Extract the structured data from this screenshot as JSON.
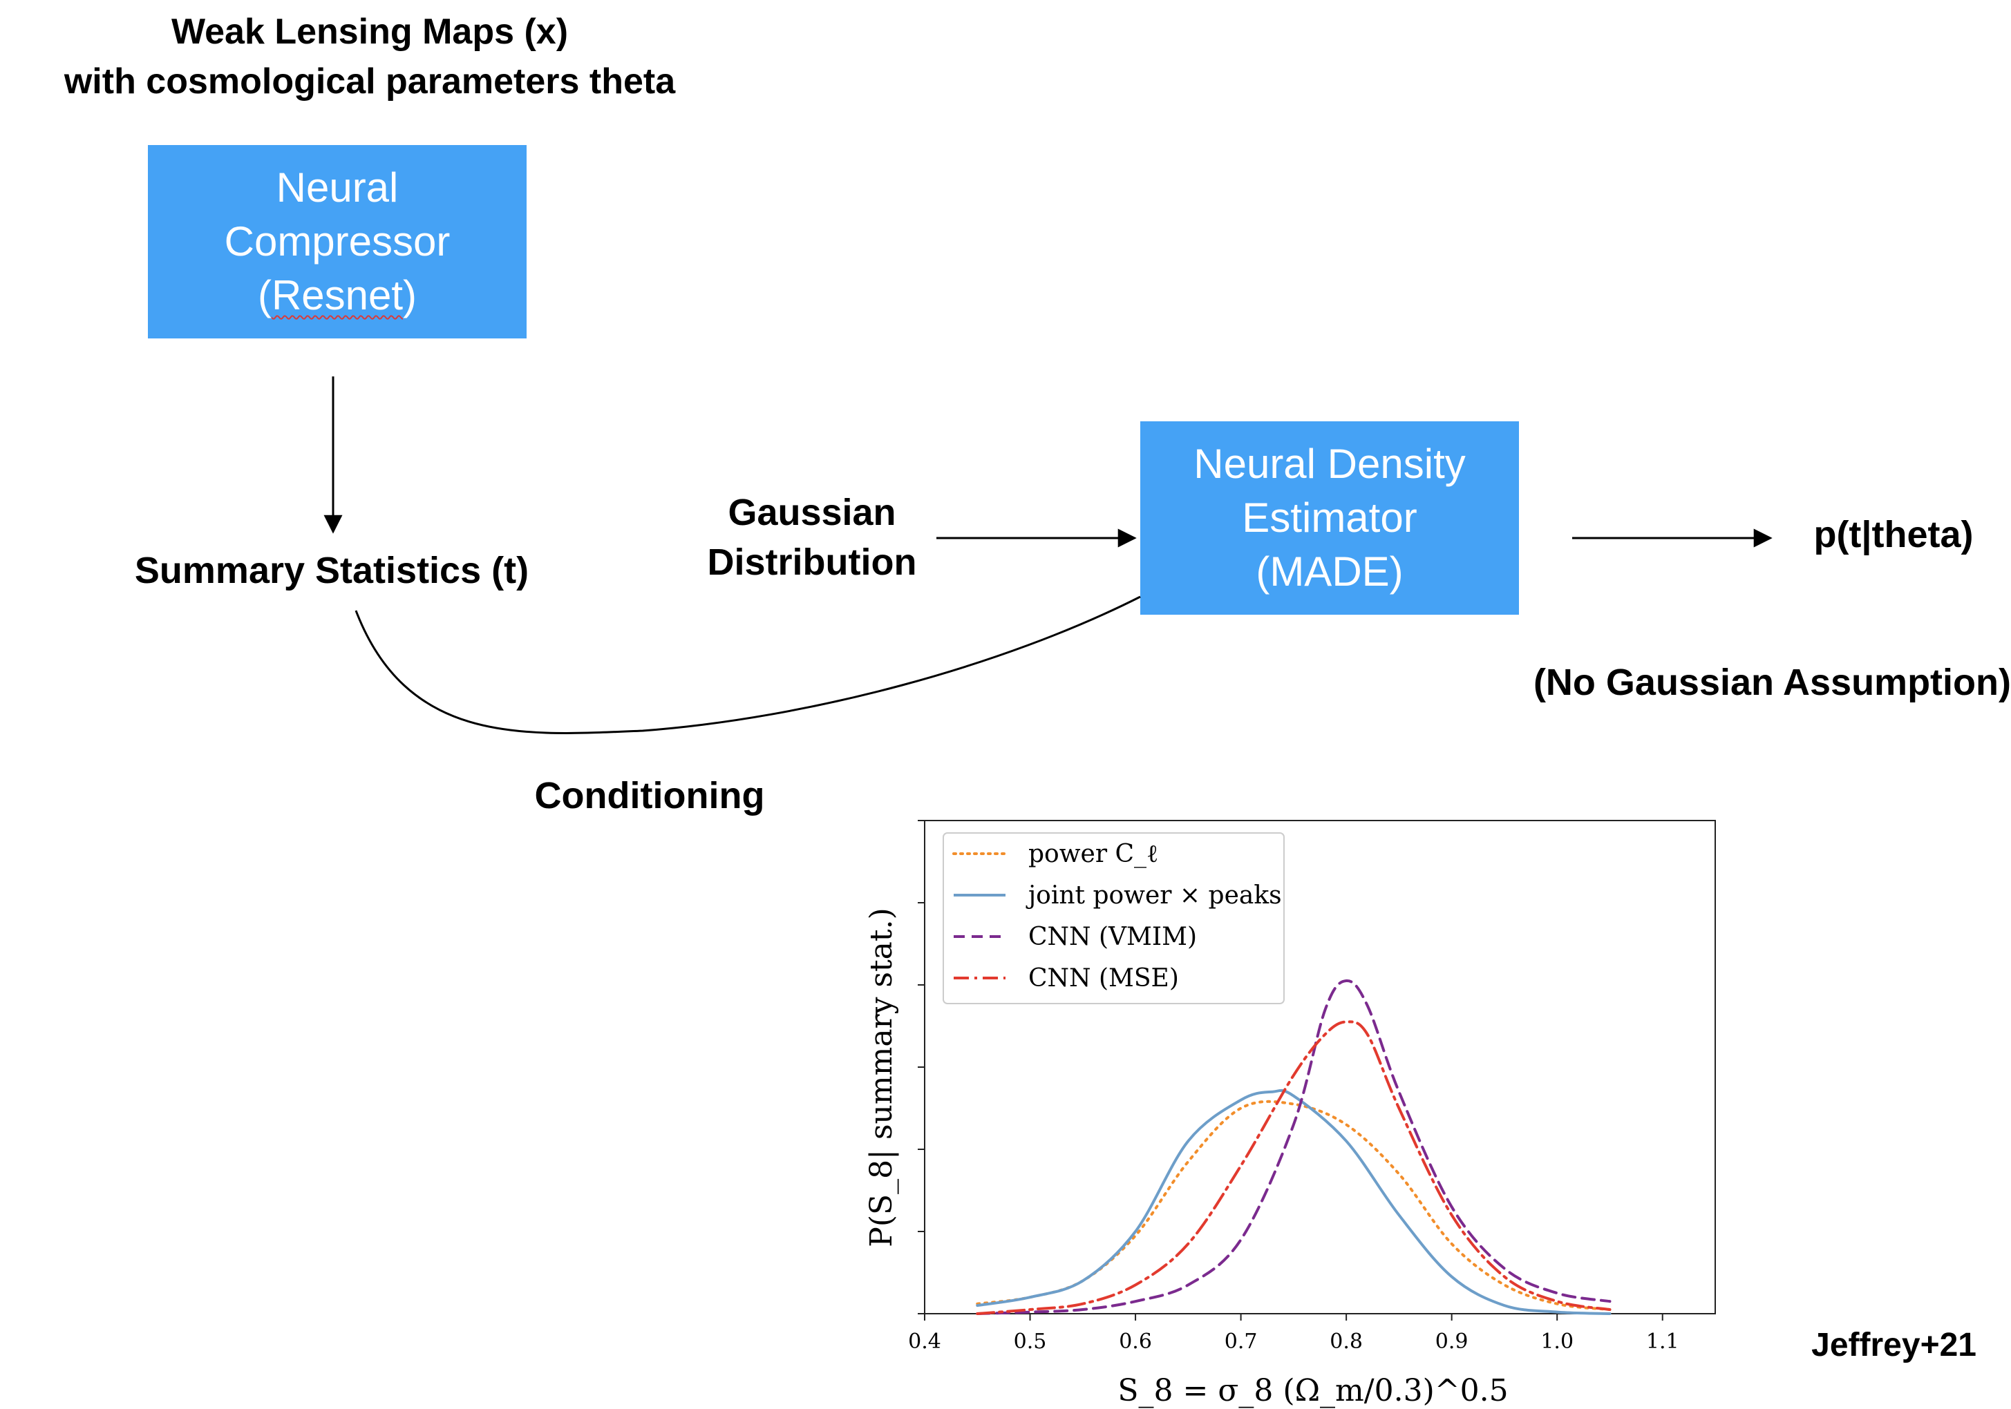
{
  "diagram": {
    "title_line1": "Weak Lensing Maps (x)",
    "title_line2": "with cosmological parameters theta",
    "compressor": {
      "line1": "Neural",
      "line2": "Compressor",
      "line3_open": "(",
      "line3_word": "Resnet",
      "line3_close": ")"
    },
    "summary": "Summary Statistics (t)",
    "gaussian_line1": "Gaussian",
    "gaussian_line2": "Distribution",
    "estimator": {
      "line1": "Neural Density",
      "line2": "Estimator",
      "line3": "(MADE)"
    },
    "output": "p(t|theta)",
    "no_gaussian": "(No Gaussian Assumption)",
    "conditioning": "Conditioning",
    "citation": "Jeffrey+21",
    "box_color": "#45a2f5"
  },
  "chart_data": {
    "type": "line",
    "xlabel": "S_8 = σ_8 (Ω_m/0.3)^0.5",
    "ylabel": "P(S_8| summary stat.)",
    "xlim": [
      0.4,
      1.15
    ],
    "ylim": [
      0,
      6
    ],
    "x_ticks": [
      "0.4",
      "0.5",
      "0.6",
      "0.7",
      "0.8",
      "0.9",
      "1.0",
      "1.1"
    ],
    "grid": false,
    "legend_position": "top-left",
    "series": [
      {
        "name": "power C_ℓ",
        "color": "#f28e2b",
        "style": "dotted",
        "x": [
          0.45,
          0.5,
          0.55,
          0.6,
          0.65,
          0.7,
          0.75,
          0.8,
          0.85,
          0.9,
          0.95,
          1.0,
          1.05
        ],
        "y": [
          0.12,
          0.2,
          0.4,
          0.95,
          1.85,
          2.5,
          2.55,
          2.3,
          1.7,
          0.85,
          0.35,
          0.12,
          0.05
        ]
      },
      {
        "name": "joint power × peaks",
        "color": "#6d9ec9",
        "style": "solid",
        "x": [
          0.45,
          0.5,
          0.55,
          0.6,
          0.65,
          0.7,
          0.73,
          0.75,
          0.8,
          0.85,
          0.9,
          0.95,
          1.0,
          1.05
        ],
        "y": [
          0.1,
          0.2,
          0.4,
          1.0,
          2.1,
          2.6,
          2.7,
          2.65,
          2.1,
          1.2,
          0.45,
          0.1,
          0.02,
          0.0
        ]
      },
      {
        "name": "CNN (VMIM)",
        "color": "#7b2a8e",
        "style": "dashed",
        "x": [
          0.45,
          0.5,
          0.55,
          0.6,
          0.65,
          0.7,
          0.75,
          0.78,
          0.8,
          0.82,
          0.85,
          0.9,
          0.95,
          1.0,
          1.05
        ],
        "y": [
          0.0,
          0.02,
          0.05,
          0.15,
          0.35,
          0.9,
          2.3,
          3.7,
          4.05,
          3.75,
          2.7,
          1.3,
          0.55,
          0.25,
          0.15
        ]
      },
      {
        "name": "CNN (MSE)",
        "color": "#e23a2e",
        "style": "dashdot",
        "x": [
          0.45,
          0.5,
          0.55,
          0.6,
          0.65,
          0.7,
          0.75,
          0.78,
          0.8,
          0.82,
          0.85,
          0.9,
          0.95,
          1.0,
          1.05
        ],
        "y": [
          0.0,
          0.05,
          0.12,
          0.35,
          0.85,
          1.8,
          2.9,
          3.4,
          3.55,
          3.4,
          2.5,
          1.2,
          0.45,
          0.15,
          0.05
        ]
      }
    ]
  }
}
